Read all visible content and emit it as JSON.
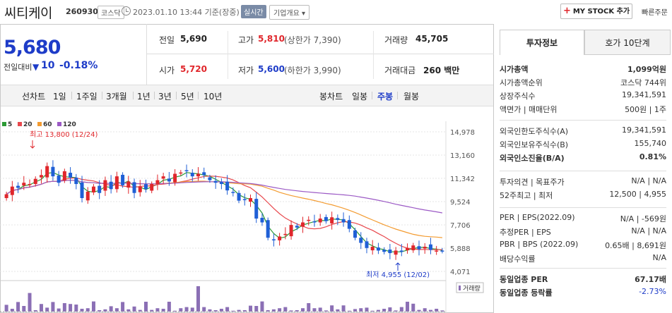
{
  "header": {
    "name": "씨티케이",
    "code": "260930",
    "market": "코스닥",
    "datetime": "2023.01.10 13:44 기준(장중)",
    "realtime": "실시간",
    "overview": "기업개요",
    "mystock": "MY STOCK 추가",
    "quick_order": "빠른주문"
  },
  "quote": {
    "price": "5,680",
    "change_label": "전일대비",
    "change": "10",
    "change_pct": "-0.18%",
    "prev_label": "전일",
    "prev": "5,690",
    "high_label": "고가",
    "high": "5,810",
    "upper_limit": "(상한가 7,390)",
    "volume_label": "거래량",
    "volume": "45,705",
    "open_label": "시가",
    "open": "5,720",
    "low_label": "저가",
    "low": "5,600",
    "lower_limit": "(하한가 3,990)",
    "amount_label": "거래대금",
    "amount": "260 백만"
  },
  "periods": {
    "line_label": "선차트",
    "items": [
      "1일",
      "1주일",
      "3개월",
      "1년",
      "3년",
      "5년",
      "10년"
    ],
    "candle_label": "봉차트",
    "candles": [
      "일봉",
      "주봉",
      "월봉"
    ],
    "selected_candle": "주봉"
  },
  "chart_data": {
    "type": "candlestick",
    "ma_legend": [
      "5",
      "20",
      "60",
      "120"
    ],
    "ma_colors": [
      "#2c9a35",
      "#e8484d",
      "#f39b30",
      "#9b59c5"
    ],
    "y_ticks": [
      "14,978",
      "13,160",
      "11,342",
      "9,524",
      "7,706",
      "5,888",
      "4,071"
    ],
    "ylim": [
      4071,
      14978
    ],
    "high_note": "최고 13,800 (12/24)",
    "low_note": "최저 4,955 (12/02)",
    "volume_label": "거래량",
    "closes": [
      10100,
      10700,
      10600,
      11000,
      10900,
      11300,
      11600,
      12300,
      11500,
      11000,
      11900,
      11400,
      10900,
      9800,
      10300,
      10700,
      10200,
      11200,
      10500,
      11500,
      10800,
      11100,
      10200,
      10700,
      10500,
      10900,
      11200,
      11500,
      11100,
      11700,
      11800,
      11900,
      11500,
      11700,
      11600,
      11200,
      11000,
      10900,
      10400,
      10200,
      9600,
      9700,
      9800,
      8200,
      7900,
      6700,
      6500,
      6800,
      7000,
      7700,
      7500,
      7900,
      8100,
      7900,
      8200,
      8000,
      8300,
      8100,
      7900,
      7400,
      6700,
      6300,
      5900,
      6000,
      5700,
      5600,
      5500,
      5700,
      5600,
      5900,
      6100,
      5800,
      6000,
      5750,
      5700,
      5680
    ],
    "volumes": [
      0.24,
      0.1,
      0.34,
      0.2,
      0.66,
      0.05,
      0.27,
      0.14,
      0.34,
      0.11,
      0.3,
      0.27,
      0.25,
      0.1,
      0.12,
      0.36,
      0.05,
      0.08,
      0.19,
      0.12,
      0.34,
      0.08,
      0.18,
      0.06,
      0.35,
      0.06,
      0.12,
      0.1,
      0.35,
      0.03,
      0.12,
      0.16,
      0.14,
      0.9,
      0.16,
      0.08,
      0.05,
      0.1,
      0.16,
      0.03,
      0.06,
      0.05,
      0.21,
      0.2,
      0.36,
      0.05,
      0.08,
      0.12,
      0.16,
      0.04,
      0.05,
      0.12,
      0.3,
      0.12,
      0.14,
      0.04,
      0.22,
      0.08,
      0.22,
      0.03,
      0.09,
      0.12,
      0.14,
      0.03,
      0.06,
      0.1,
      0.15,
      0.04,
      0.16,
      0.35,
      0.28,
      0.06,
      0.12,
      0.06,
      0.1,
      0.04
    ]
  },
  "panel": {
    "tabs": [
      "투자정보",
      "호가 10단계"
    ],
    "rows1": [
      {
        "l": "시가총액",
        "v": "1,099억원"
      },
      {
        "l": "시가총액순위",
        "v": "코스닥 744위"
      },
      {
        "l": "상장주식수",
        "v": "19,341,591"
      },
      {
        "l": "액면가 | 매매단위",
        "v": "500원 | 1주"
      }
    ],
    "rows2": [
      {
        "l": "외국인한도주식수(A)",
        "v": "19,341,591"
      },
      {
        "l": "외국인보유주식수(B)",
        "v": "155,740"
      },
      {
        "l": "외국인소진율(B/A)",
        "v": "0.81%"
      }
    ],
    "rows3": [
      {
        "l": "투자의견 | 목표주가",
        "v": "N/A | N/A"
      },
      {
        "l": "52주최고 | 최저",
        "v": "12,500 | 4,955"
      }
    ],
    "rows4": [
      {
        "l": "PER | EPS(2022.09)",
        "v": "N/A | -569원"
      },
      {
        "l": "추정PER | EPS",
        "v": "N/A | N/A"
      },
      {
        "l": "PBR | BPS (2022.09)",
        "v": "0.65배 | 8,691원"
      },
      {
        "l": "배당수익률",
        "v": "N/A"
      }
    ],
    "rows5": [
      {
        "l": "동일업종 PER",
        "v": "67.17배"
      },
      {
        "l": "동일업종 등락률",
        "v": "-2.73%"
      }
    ]
  }
}
